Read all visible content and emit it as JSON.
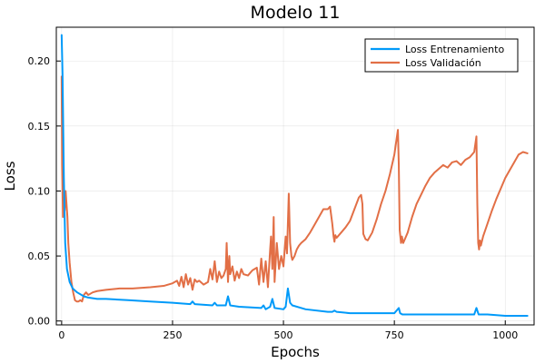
{
  "chart_data": {
    "type": "line",
    "title": "Modelo 11",
    "xlabel": "Epochs",
    "ylabel": "Loss",
    "xlim": [
      -12,
      1065
    ],
    "ylim": [
      -0.003,
      0.226
    ],
    "x_ticks": [
      0,
      250,
      500,
      750,
      1000
    ],
    "x_tick_labels": [
      "0",
      "250",
      "500",
      "750",
      "1000"
    ],
    "y_ticks": [
      0.0,
      0.05,
      0.1,
      0.15,
      0.2
    ],
    "y_tick_labels": [
      "0.00",
      "0.05",
      "0.10",
      "0.15",
      "0.20"
    ],
    "grid": true,
    "legend_position": "top-right",
    "series": [
      {
        "name": "Loss Entrenamiento",
        "color": "#009af9",
        "x": [
          0,
          2,
          5,
          8,
          12,
          18,
          25,
          35,
          50,
          60,
          80,
          100,
          150,
          200,
          250,
          290,
          295,
          300,
          340,
          345,
          350,
          370,
          375,
          380,
          400,
          450,
          455,
          460,
          470,
          475,
          480,
          500,
          505,
          510,
          515,
          520,
          550,
          600,
          610,
          615,
          620,
          650,
          700,
          750,
          760,
          763,
          768,
          800,
          850,
          900,
          930,
          935,
          940,
          960,
          1000,
          1050
        ],
        "values": [
          0.22,
          0.19,
          0.11,
          0.06,
          0.04,
          0.03,
          0.025,
          0.022,
          0.019,
          0.018,
          0.017,
          0.017,
          0.016,
          0.015,
          0.014,
          0.013,
          0.015,
          0.013,
          0.012,
          0.014,
          0.012,
          0.012,
          0.019,
          0.012,
          0.011,
          0.01,
          0.012,
          0.009,
          0.011,
          0.017,
          0.01,
          0.009,
          0.011,
          0.025,
          0.014,
          0.012,
          0.009,
          0.007,
          0.007,
          0.008,
          0.007,
          0.006,
          0.006,
          0.006,
          0.01,
          0.006,
          0.005,
          0.005,
          0.005,
          0.005,
          0.005,
          0.01,
          0.005,
          0.005,
          0.004,
          0.004
        ]
      },
      {
        "name": "Loss Validación",
        "color": "#e26f46",
        "x": [
          0,
          1,
          3,
          5,
          7,
          9,
          11,
          13,
          15,
          18,
          22,
          26,
          30,
          34,
          38,
          42,
          46,
          50,
          55,
          60,
          70,
          80,
          100,
          130,
          160,
          200,
          230,
          250,
          260,
          265,
          270,
          275,
          280,
          285,
          290,
          295,
          300,
          305,
          310,
          320,
          330,
          335,
          340,
          345,
          350,
          355,
          360,
          365,
          370,
          372,
          375,
          378,
          380,
          385,
          390,
          395,
          400,
          405,
          410,
          420,
          430,
          440,
          445,
          450,
          455,
          460,
          465,
          470,
          472,
          475,
          478,
          480,
          485,
          490,
          495,
          500,
          505,
          508,
          512,
          515,
          518,
          520,
          525,
          530,
          535,
          540,
          550,
          560,
          570,
          580,
          590,
          600,
          605,
          610,
          613,
          615,
          617,
          620,
          630,
          640,
          650,
          660,
          670,
          675,
          678,
          680,
          685,
          690,
          700,
          710,
          720,
          730,
          740,
          750,
          755,
          758,
          760,
          762,
          765,
          767,
          770,
          780,
          790,
          800,
          810,
          820,
          830,
          840,
          850,
          860,
          870,
          880,
          890,
          900,
          910,
          920,
          930,
          935,
          937,
          939,
          941,
          943,
          945,
          950,
          960,
          970,
          980,
          990,
          1000,
          1010,
          1020,
          1030,
          1040,
          1050
        ],
        "values": [
          0.188,
          0.12,
          0.08,
          0.095,
          0.085,
          0.1,
          0.09,
          0.08,
          0.06,
          0.045,
          0.03,
          0.022,
          0.016,
          0.015,
          0.015,
          0.016,
          0.015,
          0.02,
          0.022,
          0.02,
          0.022,
          0.023,
          0.024,
          0.025,
          0.025,
          0.026,
          0.027,
          0.029,
          0.031,
          0.027,
          0.034,
          0.026,
          0.036,
          0.028,
          0.033,
          0.024,
          0.032,
          0.03,
          0.031,
          0.028,
          0.03,
          0.04,
          0.032,
          0.046,
          0.03,
          0.038,
          0.033,
          0.035,
          0.04,
          0.06,
          0.03,
          0.05,
          0.036,
          0.042,
          0.031,
          0.038,
          0.033,
          0.04,
          0.036,
          0.035,
          0.039,
          0.041,
          0.028,
          0.048,
          0.03,
          0.046,
          0.026,
          0.055,
          0.065,
          0.04,
          0.08,
          0.03,
          0.06,
          0.04,
          0.05,
          0.042,
          0.065,
          0.052,
          0.098,
          0.06,
          0.05,
          0.047,
          0.05,
          0.055,
          0.058,
          0.06,
          0.063,
          0.068,
          0.074,
          0.08,
          0.086,
          0.086,
          0.088,
          0.075,
          0.065,
          0.061,
          0.066,
          0.064,
          0.068,
          0.072,
          0.077,
          0.086,
          0.095,
          0.097,
          0.09,
          0.067,
          0.063,
          0.062,
          0.068,
          0.078,
          0.09,
          0.1,
          0.113,
          0.128,
          0.14,
          0.147,
          0.12,
          0.07,
          0.06,
          0.065,
          0.06,
          0.068,
          0.08,
          0.09,
          0.097,
          0.104,
          0.11,
          0.114,
          0.117,
          0.12,
          0.118,
          0.122,
          0.123,
          0.12,
          0.124,
          0.126,
          0.13,
          0.142,
          0.09,
          0.06,
          0.055,
          0.062,
          0.058,
          0.065,
          0.075,
          0.085,
          0.094,
          0.102,
          0.11,
          0.116,
          0.122,
          0.128,
          0.13,
          0.129
        ]
      }
    ]
  }
}
